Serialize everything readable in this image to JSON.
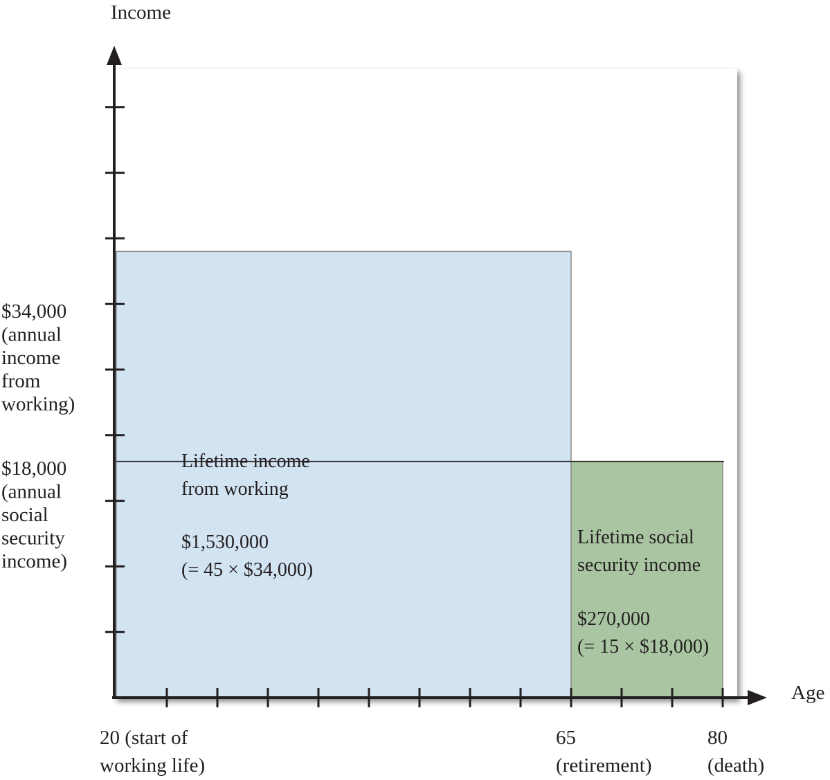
{
  "chart_data": {
    "type": "area",
    "title": "",
    "ylabel": "Income",
    "xlabel": "Age",
    "ylim": [
      0,
      50000
    ],
    "x_ticks": [
      {
        "value": 20,
        "lines": [
          "20 (start of",
          "working life)"
        ]
      },
      {
        "value": 65,
        "lines": [
          "65",
          "(retirement)"
        ]
      },
      {
        "value": 80,
        "lines": [
          "80",
          "(death)"
        ]
      }
    ],
    "y_ticks": [
      {
        "value": 34000,
        "lines": [
          "$34,000",
          "(annual",
          "income",
          "from",
          "working)"
        ]
      },
      {
        "value": 18000,
        "lines": [
          "$18,000",
          "(annual",
          "social",
          "security",
          "income)"
        ]
      }
    ],
    "regions": [
      {
        "name": "working",
        "x_start": 20,
        "x_end": 65,
        "y": 34000,
        "color": "#d2e3f2",
        "label_lines": [
          "Lifetime income",
          "from working"
        ],
        "value_lines": [
          "$1,530,000",
          "(= 45 × $34,000)"
        ]
      },
      {
        "name": "social-security",
        "x_start": 65,
        "x_end": 80,
        "y": 18000,
        "color": "#a9c5a1",
        "label_lines": [
          "Lifetime social",
          "security income"
        ],
        "value_lines": [
          "$270,000",
          "(= 15 × $18,000)"
        ]
      }
    ]
  }
}
